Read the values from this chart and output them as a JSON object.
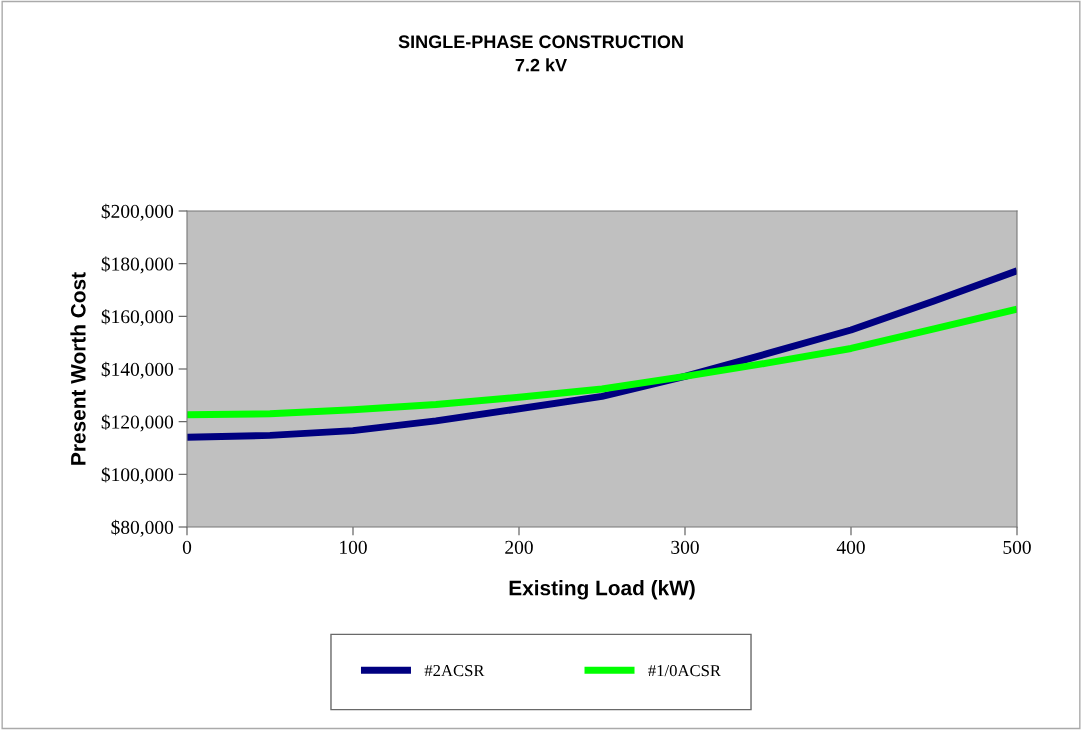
{
  "chart_data": {
    "type": "line",
    "title": "SINGLE-PHASE CONSTRUCTION\n7.2 kV",
    "xlabel": "Existing Load (kW)",
    "ylabel": "Present Worth Cost",
    "x": [
      0,
      50,
      100,
      150,
      200,
      250,
      300,
      350,
      400,
      450,
      500
    ],
    "series": [
      {
        "name": "#2ACSR",
        "color": "#000080",
        "values": [
          114100,
          114800,
          116600,
          120300,
          124900,
          129600,
          137200,
          145900,
          154800,
          165800,
          177300
        ]
      },
      {
        "name": "#1/0ACSR",
        "color": "#00ff00",
        "values": [
          122600,
          123000,
          124500,
          126500,
          129300,
          132400,
          137200,
          142300,
          147800,
          155200,
          162700
        ]
      }
    ],
    "xlim": [
      0,
      500
    ],
    "xticks": [
      0,
      100,
      200,
      300,
      400,
      500
    ],
    "ylim": [
      80000,
      200000
    ],
    "yticks": [
      {
        "value": 80000,
        "label": "$80,000"
      },
      {
        "value": 100000,
        "label": "$100,000"
      },
      {
        "value": 120000,
        "label": "$120,000"
      },
      {
        "value": 140000,
        "label": "$140,000"
      },
      {
        "value": 160000,
        "label": "$160,000"
      },
      {
        "value": 180000,
        "label": "$180,000"
      },
      {
        "value": 200000,
        "label": "$200,000"
      }
    ],
    "grid": false,
    "legend": "bottom",
    "marker": "none",
    "line_style": "solid"
  }
}
